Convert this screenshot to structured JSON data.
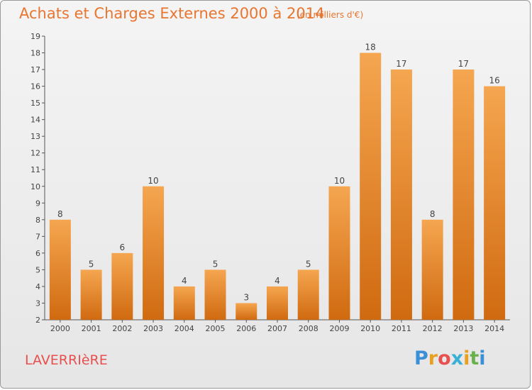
{
  "title": "Achats et Charges Externes 2000 à 2014",
  "subtitle": "(en milliers d'€)",
  "place": "LAVERRIèRE",
  "brand": {
    "letters": [
      "P",
      "r",
      "o",
      "x",
      "i",
      "t",
      "i"
    ],
    "colors": [
      "#3b8fd6",
      "#e8a020",
      "#e85050",
      "#3bb0d6",
      "#e8a020",
      "#6ab04c",
      "#3b8fd6"
    ]
  },
  "colors": {
    "bar_light": "#f5a650",
    "bar_dark": "#d06a10",
    "text": "#444444",
    "accent": "#e87530"
  },
  "chart_data": {
    "type": "bar",
    "categories": [
      "2000",
      "2001",
      "2002",
      "2003",
      "2004",
      "2005",
      "2006",
      "2007",
      "2008",
      "2009",
      "2010",
      "2011",
      "2012",
      "2013",
      "2014"
    ],
    "values": [
      8,
      5,
      6,
      10,
      4,
      5,
      3,
      4,
      5,
      10,
      18,
      17,
      8,
      17,
      16
    ],
    "ylim": [
      2,
      19
    ],
    "yticks": [
      2,
      3,
      4,
      5,
      6,
      7,
      8,
      9,
      10,
      11,
      12,
      13,
      14,
      15,
      16,
      17,
      18,
      19
    ],
    "grid": false,
    "title": "Achats et Charges Externes 2000 à 2014",
    "xlabel": "",
    "ylabel": ""
  }
}
